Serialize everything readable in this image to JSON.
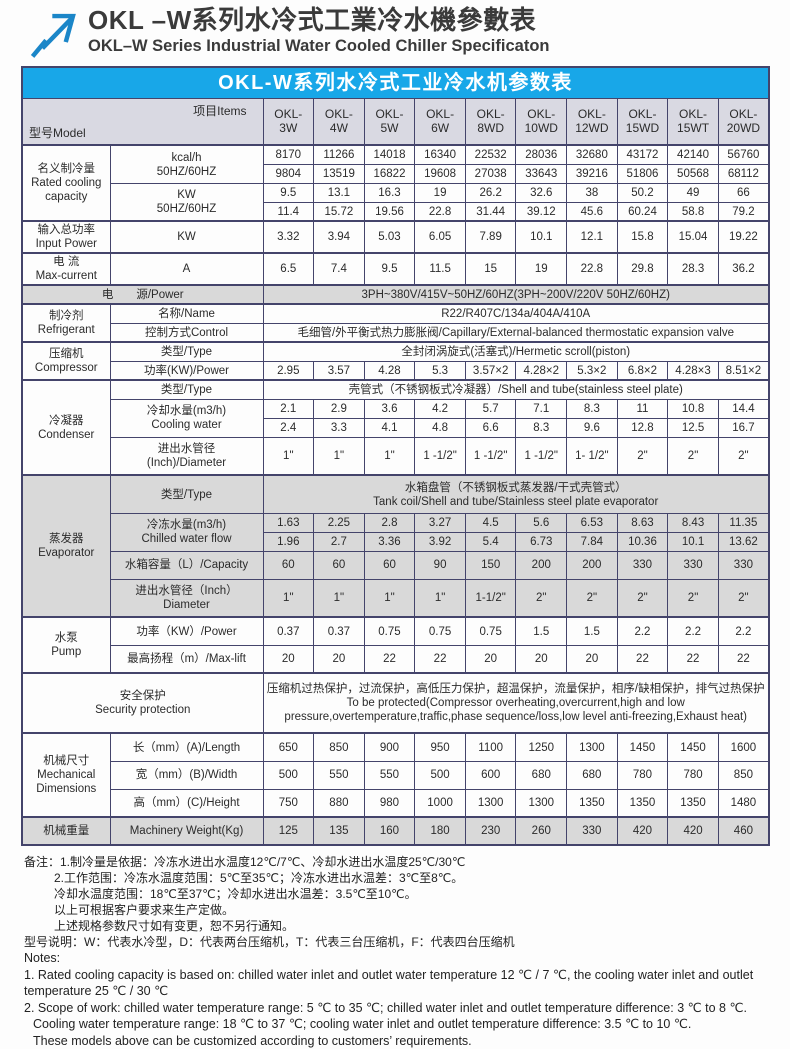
{
  "page": {
    "title_zh": "OKL –W系列水冷式工業冷水機參數表",
    "title_en": "OKL–W Series Industrial Water Cooled Chiller Specificaton"
  },
  "colors": {
    "banner_blue": "#18a7e8",
    "border": "#44446b",
    "row_shade": "#d9d9d9"
  },
  "table": {
    "banner": "OKL-W系列水冷式工业冷水机参数表",
    "corner": {
      "model": "型号Model",
      "items": "项目Items"
    },
    "models": [
      "OKL-\n3W",
      "OKL-\n4W",
      "OKL-\n5W",
      "OKL-\n6W",
      "OKL-\n8WD",
      "OKL-\n10WD",
      "OKL-\n12WD",
      "OKL-\n15WD",
      "OKL-\n15WT",
      "OKL-\n20WD"
    ],
    "labels": {
      "cat_capacity": "名义制冷量\nRated cooling\ncapacity",
      "item_kcal": "kcal/h\n50HZ/60HZ",
      "item_kw": "KW\n50HZ/60HZ",
      "cat_input": "输入总功率\nInput Power",
      "item_input": "KW",
      "cat_current": "电 流\nMax-current",
      "item_current": "A",
      "power_label": "电　　源/Power",
      "power_value": "3PH~380V/415V~50HZ/60HZ(3PH~200V/220V  50HZ/60HZ)",
      "cat_refrigerant": "制冷剂\nRefrigerant",
      "item_name": "名称/Name",
      "val_name": "R22/R407C/134a/404A/410A",
      "item_control": "控制方式Control",
      "val_control": "毛细管/外平衡式热力膨胀阀/Capillary/External-balanced thermostatic expansion valve",
      "cat_compressor": "压缩机\nCompressor",
      "item_type": "类型/Type",
      "val_comp_type": "全封闭涡旋式(活塞式)/Hermetic scroll(piston)",
      "item_comp_power": "功率(KW)/Power",
      "cat_condenser": "冷凝器\nCondenser",
      "val_cond_type": "壳管式（不锈钢板式冷凝器）/Shell and tube(stainless steel plate)",
      "item_cond_flow": "冷却水量(m3/h)\nCooling water",
      "item_cond_pipe": "进出水管径\n(Inch)/Diameter",
      "cat_evaporator": "蒸发器\nEvaporator",
      "val_evap_type": "水箱盘管（不锈钢板式蒸发器/干式壳管式）\nTank coil/Shell and tube/Stainless steel plate evaporator",
      "item_evap_flow": "冷冻水量(m3/h)\nChilled water flow",
      "item_tank": "水箱容量（L）/Capacity",
      "item_evap_pipe": "进出水管径（Inch）\nDiameter",
      "cat_pump": "水泵\nPump",
      "item_pump_power": "功率（KW）/Power",
      "item_pump_lift": "最高扬程（m）/Max-lift",
      "security_label": "安全保护\nSecurity protection",
      "security_value": "压缩机过热保护，过流保护，高低压力保护，超温保护，流量保护，相序/缺相保护，排气过热保护\nTo be protected(Compressor overheating,overcurrent,high and low\npressure,overtemperature,traffic,phase sequence/loss,low level anti-freezing,Exhaust heat)",
      "cat_dims": "机械尺寸\nMechanical\nDimensions",
      "item_length": "长（mm）(A)/Length",
      "item_width": "宽（mm）(B)/Width",
      "item_height": "高（mm）(C)/Height",
      "cat_weight": "机械重量",
      "item_weight": "Machinery Weight(Kg)"
    },
    "rows": {
      "kcal1": [
        "8170",
        "11266",
        "14018",
        "16340",
        "22532",
        "28036",
        "32680",
        "43172",
        "42140",
        "56760"
      ],
      "kcal2": [
        "9804",
        "13519",
        "16822",
        "19608",
        "27038",
        "33643",
        "39216",
        "51806",
        "50568",
        "68112"
      ],
      "kw1": [
        "9.5",
        "13.1",
        "16.3",
        "19",
        "26.2",
        "32.6",
        "38",
        "50.2",
        "49",
        "66"
      ],
      "kw2": [
        "11.4",
        "15.72",
        "19.56",
        "22.8",
        "31.44",
        "39.12",
        "45.6",
        "60.24",
        "58.8",
        "79.2"
      ],
      "input_power": [
        "3.32",
        "3.94",
        "5.03",
        "6.05",
        "7.89",
        "10.1",
        "12.1",
        "15.8",
        "15.04",
        "19.22"
      ],
      "current": [
        "6.5",
        "7.4",
        "9.5",
        "11.5",
        "15",
        "19",
        "22.8",
        "29.8",
        "28.3",
        "36.2"
      ],
      "comp_power": [
        "2.95",
        "3.57",
        "4.28",
        "5.3",
        "3.57×2",
        "4.28×2",
        "5.3×2",
        "6.8×2",
        "4.28×3",
        "8.51×2"
      ],
      "cond_flow1": [
        "2.1",
        "2.9",
        "3.6",
        "4.2",
        "5.7",
        "7.1",
        "8.3",
        "11",
        "10.8",
        "14.4"
      ],
      "cond_flow2": [
        "2.4",
        "3.3",
        "4.1",
        "4.8",
        "6.6",
        "8.3",
        "9.6",
        "12.8",
        "12.5",
        "16.7"
      ],
      "cond_pipe": [
        "1\"",
        "1\"",
        "1\"",
        "1 -1/2\"",
        "1 -1/2\"",
        "1 -1/2\"",
        "1- 1/2\"",
        "2\"",
        "2\"",
        "2\""
      ],
      "evap_flow1": [
        "1.63",
        "2.25",
        "2.8",
        "3.27",
        "4.5",
        "5.6",
        "6.53",
        "8.63",
        "8.43",
        "11.35"
      ],
      "evap_flow2": [
        "1.96",
        "2.7",
        "3.36",
        "3.92",
        "5.4",
        "6.73",
        "7.84",
        "10.36",
        "10.1",
        "13.62"
      ],
      "tank_capacity": [
        "60",
        "60",
        "60",
        "90",
        "150",
        "200",
        "200",
        "330",
        "330",
        "330"
      ],
      "evap_pipe": [
        "1\"",
        "1\"",
        "1\"",
        "1\"",
        "1-1/2\"",
        "2\"",
        "2\"",
        "2\"",
        "2\"",
        "2\""
      ],
      "pump_power": [
        "0.37",
        "0.37",
        "0.75",
        "0.75",
        "0.75",
        "1.5",
        "1.5",
        "2.2",
        "2.2",
        "2.2"
      ],
      "pump_lift": [
        "20",
        "20",
        "22",
        "22",
        "20",
        "20",
        "20",
        "22",
        "22",
        "22"
      ],
      "length": [
        "650",
        "850",
        "900",
        "950",
        "1100",
        "1250",
        "1300",
        "1450",
        "1450",
        "1600"
      ],
      "width": [
        "500",
        "550",
        "550",
        "500",
        "600",
        "680",
        "680",
        "780",
        "780",
        "850"
      ],
      "height": [
        "750",
        "880",
        "980",
        "1000",
        "1300",
        "1300",
        "1350",
        "1350",
        "1350",
        "1480"
      ],
      "weight": [
        "125",
        "135",
        "160",
        "180",
        "230",
        "260",
        "330",
        "420",
        "420",
        "460"
      ]
    }
  },
  "notes": [
    "备注：1.制冷量是依据：冷冻水进出水温度12℃/7℃、冷却水进出水温度25℃/30℃",
    "2.工作范围：冷冻水温度范围：5℃至35℃；冷冻水进出水温差：3℃至8℃。",
    "冷却水温度范围：18℃至37℃；冷却水进出水温差：3.5℃至10℃。",
    "以上可根据客户要求来生产定做。",
    "上述规格参数尺寸如有变更，恕不另行通知。",
    "型号说明：W：代表水冷型，D：代表两台压缩机，T：代表三台压缩机，F：代表四台压缩机",
    "Notes:",
    "1. Rated cooling capacity is based on: chilled water inlet and outlet water temperature 12 ℃ / 7 ℃, the cooling water inlet and outlet",
    "temperature 25 ℃ / 30 ℃",
    "2. Scope of work: chilled water temperature range: 5 ℃ to 35 ℃; chilled water inlet and outlet temperature difference: 3 ℃ to 8 ℃.",
    "Cooling water temperature range: 18 ℃ to 37 ℃; cooling water inlet and outlet temperature difference: 3.5 ℃ to 10 ℃.",
    "These models above can be customized according to customers’  requirements."
  ]
}
